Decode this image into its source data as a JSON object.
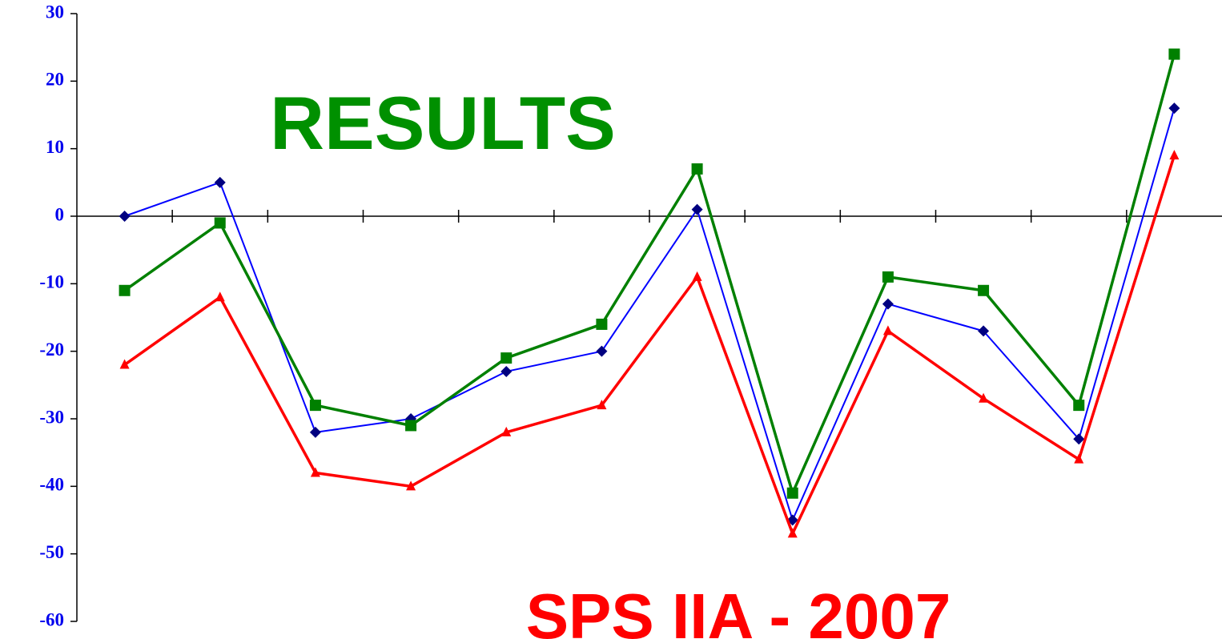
{
  "chart_data": {
    "type": "line",
    "title": "RESULTS",
    "title_color": "#009000",
    "subtitle": "SPS IIA - 2007",
    "subtitle_color": "#ff0000",
    "categories": [
      null,
      null,
      null,
      null,
      null,
      null,
      null,
      null,
      null,
      null,
      null,
      null
    ],
    "series": [
      {
        "color": "#0000ff",
        "marker": "diamond",
        "marker_color": "#000080",
        "width": 2,
        "values": [
          0,
          5,
          -32,
          -30,
          -23,
          -20,
          1,
          -45,
          -13,
          -17,
          -33,
          16
        ]
      },
      {
        "color": "#008000",
        "marker": "square",
        "marker_color": "#008000",
        "width": 3.5,
        "values": [
          -11,
          -1,
          -28,
          -31,
          -21,
          -16,
          7,
          -41,
          -9,
          -11,
          -28,
          24
        ]
      },
      {
        "color": "#ff0000",
        "marker": "triangle",
        "marker_color": "#ff0000",
        "width": 3.5,
        "values": [
          -22,
          -12,
          -38,
          -40,
          -32,
          -28,
          -9,
          -47,
          -17,
          -27,
          -36,
          9
        ]
      }
    ],
    "ylim": [
      -60,
      30
    ],
    "yticks": [
      -60,
      -50,
      -40,
      -30,
      -20,
      -10,
      0,
      10,
      20,
      30
    ],
    "grid": false
  }
}
